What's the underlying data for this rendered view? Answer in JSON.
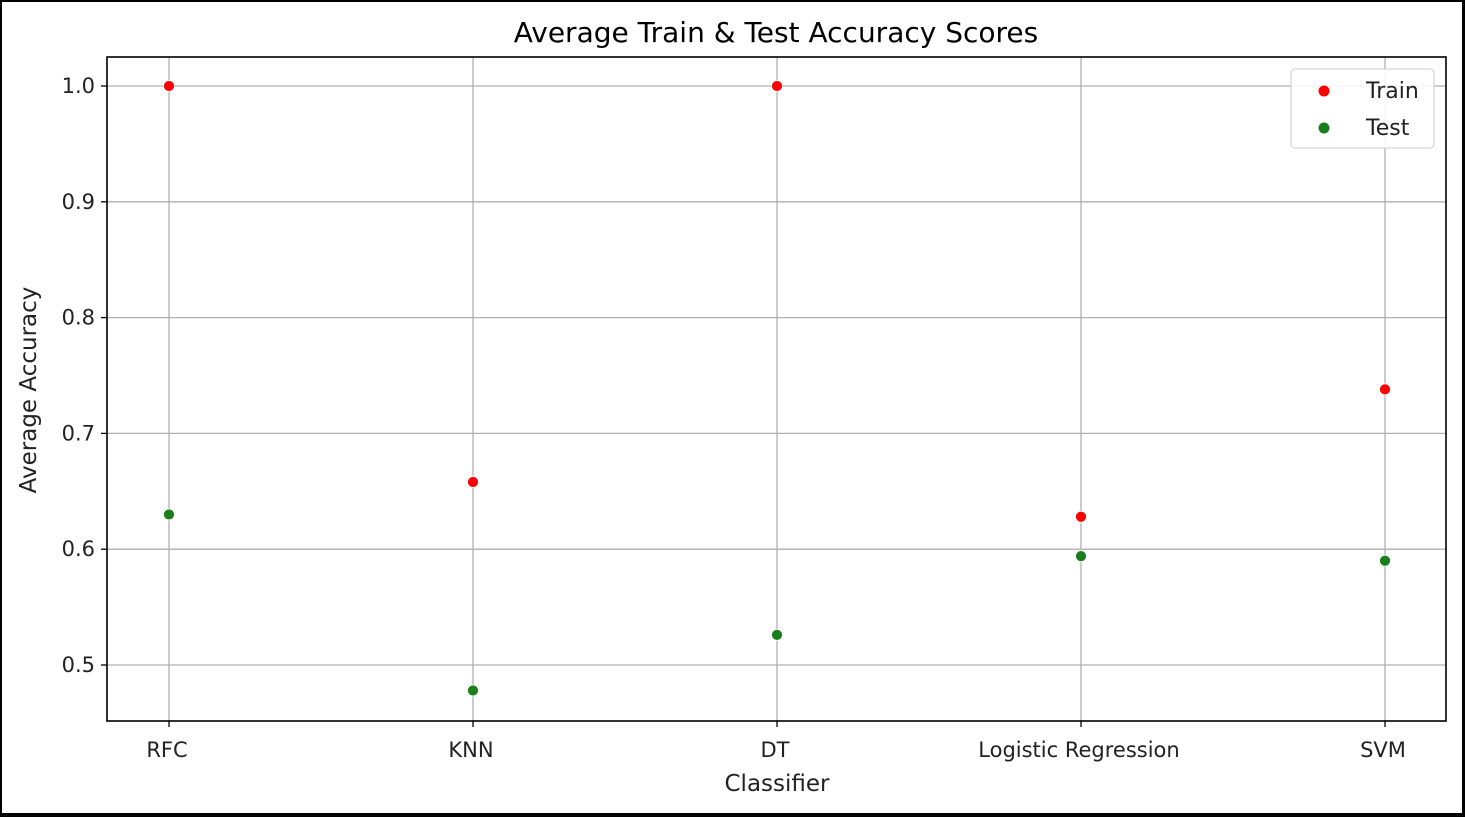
{
  "chart_data": {
    "type": "scatter",
    "title": "Average Train & Test Accuracy Scores",
    "xlabel": "Classifier",
    "ylabel": "Average Accuracy",
    "categories": [
      "RFC",
      "KNN",
      "DT",
      "Logistic Regression",
      "SVM"
    ],
    "series": [
      {
        "name": "Train",
        "color": "#ff0000",
        "values": [
          1.0,
          0.658,
          1.0,
          0.628,
          0.738
        ]
      },
      {
        "name": "Test",
        "color": "#1a7f1a",
        "values": [
          0.63,
          0.478,
          0.526,
          0.594,
          0.59
        ]
      }
    ],
    "ylim": [
      0.45,
      1.025
    ],
    "yticks": [
      0.5,
      0.6,
      0.7,
      0.8,
      0.9,
      1.0
    ],
    "ytick_labels": [
      "0.5",
      "0.6",
      "0.7",
      "0.8",
      "0.9",
      "1.0"
    ],
    "grid": true,
    "legend_position": "top-right"
  }
}
